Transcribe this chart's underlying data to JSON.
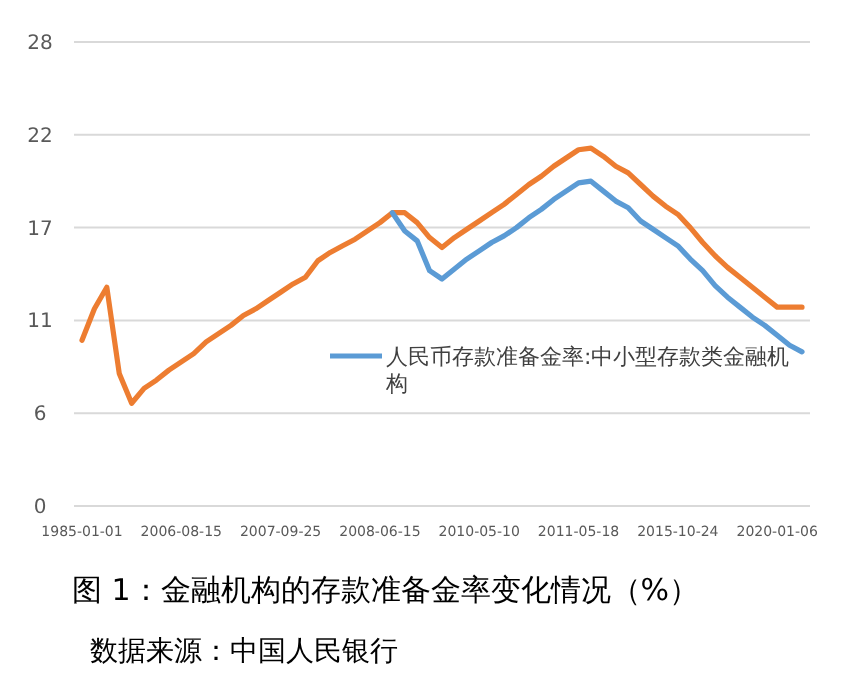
{
  "chart_data": {
    "type": "line",
    "title": "图 1：金融机构的存款准备金率变化情况（%）",
    "annotations": [
      "数据来源：中国人民银行"
    ],
    "categories": [
      "1985-01-01",
      null,
      null,
      null,
      null,
      null,
      null,
      null,
      "2006-08-15",
      null,
      null,
      null,
      null,
      null,
      null,
      null,
      "2007-09-25",
      null,
      null,
      null,
      null,
      null,
      null,
      null,
      "2008-06-15",
      null,
      null,
      null,
      null,
      null,
      null,
      null,
      "2010-05-10",
      null,
      null,
      null,
      null,
      null,
      null,
      null,
      "2011-05-18",
      null,
      null,
      null,
      null,
      null,
      null,
      null,
      "2015-10-24",
      null,
      null,
      null,
      null,
      null,
      null,
      null,
      "2020-01-06",
      null,
      null
    ],
    "series": [
      {
        "name": "人民币存款准备金率:中小型存款类金融机构",
        "color": "#5b9bd5",
        "values": [
          null,
          null,
          null,
          null,
          null,
          null,
          null,
          null,
          null,
          null,
          null,
          null,
          null,
          null,
          null,
          null,
          null,
          null,
          null,
          null,
          null,
          null,
          null,
          null,
          null,
          17.7,
          16.6,
          16.0,
          14.2,
          13.7,
          14.3,
          14.9,
          15.4,
          15.9,
          16.3,
          16.8,
          17.4,
          17.9,
          18.5,
          19.0,
          19.5,
          19.6,
          19.0,
          18.4,
          18.0,
          17.2,
          16.7,
          16.2,
          15.7,
          14.9,
          14.2,
          13.3,
          12.6,
          12.0,
          11.4,
          10.9,
          10.3,
          9.7,
          9.3
        ]
      },
      {
        "color": "#ed7d31",
        "values": [
          10.0,
          11.9,
          13.2,
          8.0,
          6.2,
          7.1,
          7.6,
          8.2,
          8.7,
          9.2,
          9.9,
          10.4,
          10.9,
          11.5,
          11.9,
          12.4,
          12.9,
          13.4,
          13.8,
          14.8,
          15.3,
          15.7,
          16.1,
          16.6,
          17.1,
          17.7,
          17.7,
          17.1,
          16.2,
          15.6,
          16.2,
          16.7,
          17.2,
          17.7,
          18.2,
          18.8,
          19.4,
          19.9,
          20.5,
          21.0,
          21.5,
          21.6,
          21.1,
          20.5,
          20.1,
          19.4,
          18.7,
          18.1,
          17.6,
          16.8,
          15.9,
          15.1,
          14.4,
          13.8,
          13.2,
          12.6,
          12.0,
          12.0,
          12.0
        ]
      }
    ],
    "ylim": [
      0,
      28
    ],
    "yticks": [
      0,
      {
        "value": 5.6,
        "label": "6"
      },
      {
        "value": 11.2,
        "label": "11"
      },
      {
        "value": 16.8,
        "label": "17"
      },
      {
        "value": 22.4,
        "label": "22"
      },
      28
    ],
    "grid": "y",
    "legend": "right",
    "line_style": "solid",
    "marker": "none"
  }
}
